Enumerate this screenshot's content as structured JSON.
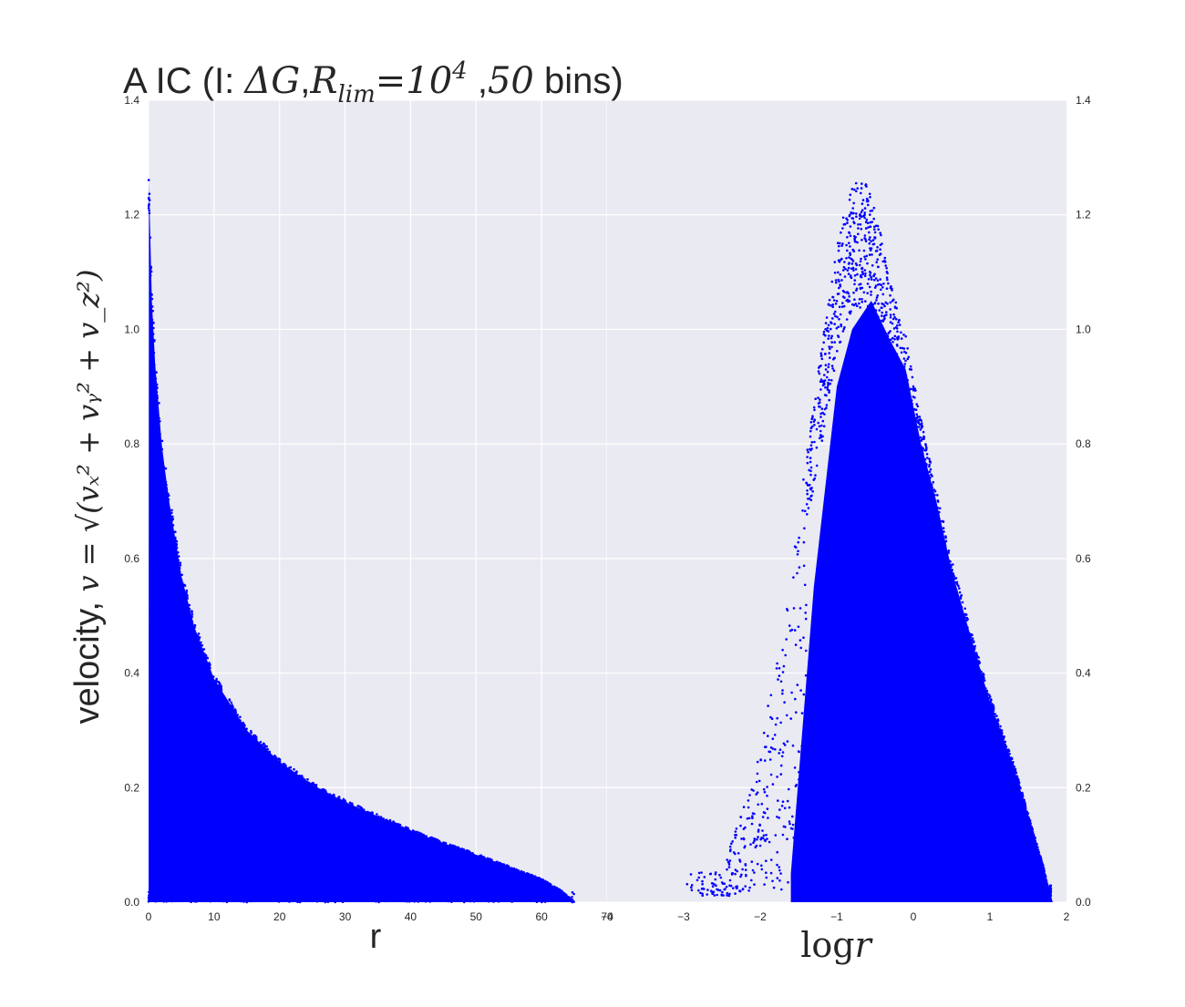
{
  "colors": {
    "panel_background": "#eaeaf2",
    "grid": "#ffffff",
    "points": "#0000ff",
    "text": "#262626"
  },
  "chart_data": [
    {
      "type": "scatter",
      "title_prefix": "A IC (I: ",
      "title_math_delta": "Δ",
      "title_math_G": "G",
      "title_comma": ",",
      "title_math_R": "R",
      "title_math_lim": "lim",
      "title_math_eq": "=10",
      "title_math_exp": "4",
      "title_sep": " ,",
      "title_bins_num": "50",
      "title_suffix": " bins)",
      "xlabel": "r",
      "ylabel_text": "velocity, ",
      "ylabel_math": "v = √(vₓ² + vᵧ² + v_z²)",
      "xlim": [
        0,
        70
      ],
      "ylim": [
        0,
        1.4
      ],
      "xticks": [
        "0",
        "10",
        "20",
        "30",
        "40",
        "50",
        "60",
        "70"
      ],
      "yticks": [
        "0.0",
        "0.2",
        "0.4",
        "0.6",
        "0.8",
        "1.0",
        "1.2",
        "1.4"
      ],
      "grid": true,
      "envelope": {
        "description_of_upper_edge": "v_max(r)",
        "r": [
          0.05,
          0.5,
          1,
          2,
          3,
          5,
          7,
          10,
          15,
          20,
          25,
          30,
          35,
          40,
          45,
          50,
          55,
          60,
          63,
          65
        ],
        "v_max": [
          1.26,
          1.05,
          0.94,
          0.8,
          0.71,
          0.57,
          0.48,
          0.39,
          0.3,
          0.245,
          0.205,
          0.175,
          0.15,
          0.125,
          0.103,
          0.083,
          0.062,
          0.04,
          0.02,
          0.0
        ]
      },
      "r_max": 65
    },
    {
      "type": "scatter",
      "xlabel_log": "log",
      "xlabel_var": "r",
      "xlim": [
        -4,
        2
      ],
      "ylim": [
        0,
        1.4
      ],
      "xticks": [
        "−4",
        "−3",
        "−2",
        "−1",
        "0",
        "1",
        "2"
      ],
      "yticks": [
        "0.0",
        "0.2",
        "0.4",
        "0.6",
        "0.8",
        "1.0",
        "1.2",
        "1.4"
      ],
      "grid": false,
      "envelope": {
        "logr": [
          -2.5,
          -2.0,
          -1.6,
          -1.3,
          -1.0,
          -0.8,
          -0.6,
          -0.45,
          -0.3,
          -0.1,
          0.1,
          0.3,
          0.5,
          0.8,
          1.0,
          1.3,
          1.5,
          1.7,
          1.8
        ],
        "v_max": [
          0.05,
          0.25,
          0.55,
          0.85,
          1.12,
          1.22,
          1.22,
          1.15,
          1.05,
          0.96,
          0.82,
          0.7,
          0.58,
          0.44,
          0.35,
          0.24,
          0.15,
          0.06,
          0.0
        ]
      },
      "logr_max": 1.82
    }
  ]
}
